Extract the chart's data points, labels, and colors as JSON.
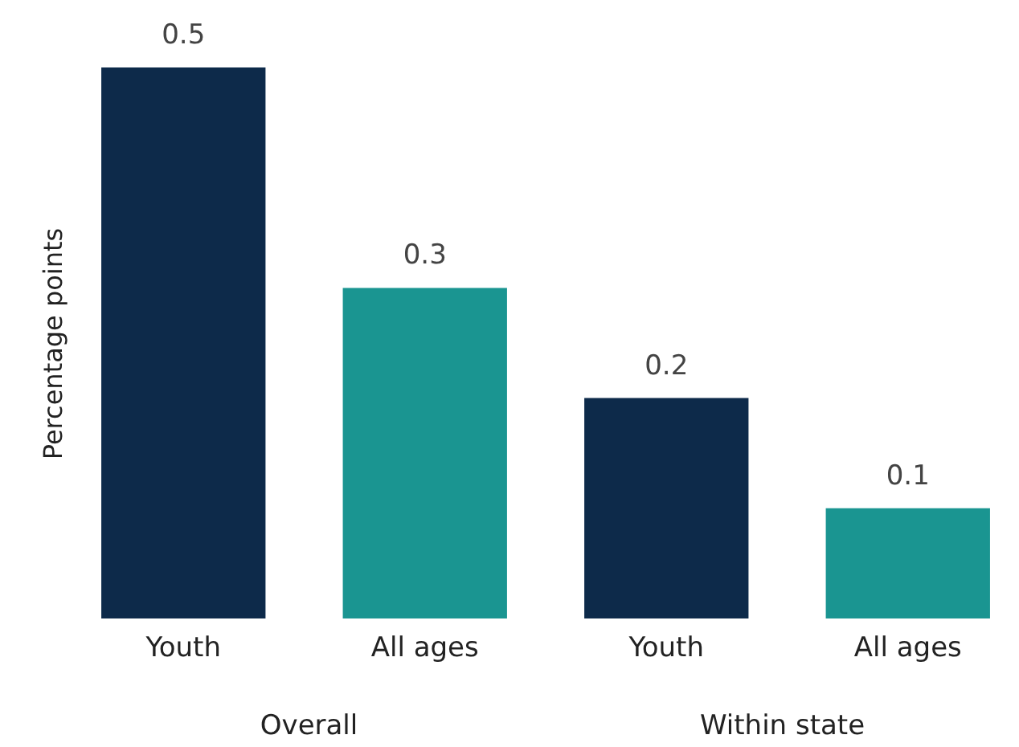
{
  "chart_data": {
    "type": "bar",
    "ylabel": "Percentage points",
    "categories": [
      "Youth",
      "All ages",
      "Youth",
      "All ages"
    ],
    "values": [
      0.5,
      0.3,
      0.2,
      0.1
    ],
    "colors": [
      "#0d2a4a",
      "#1a9591",
      "#0d2a4a",
      "#1a9591"
    ],
    "data_labels": true,
    "annotations": [
      "Overall",
      "Within state"
    ]
  }
}
